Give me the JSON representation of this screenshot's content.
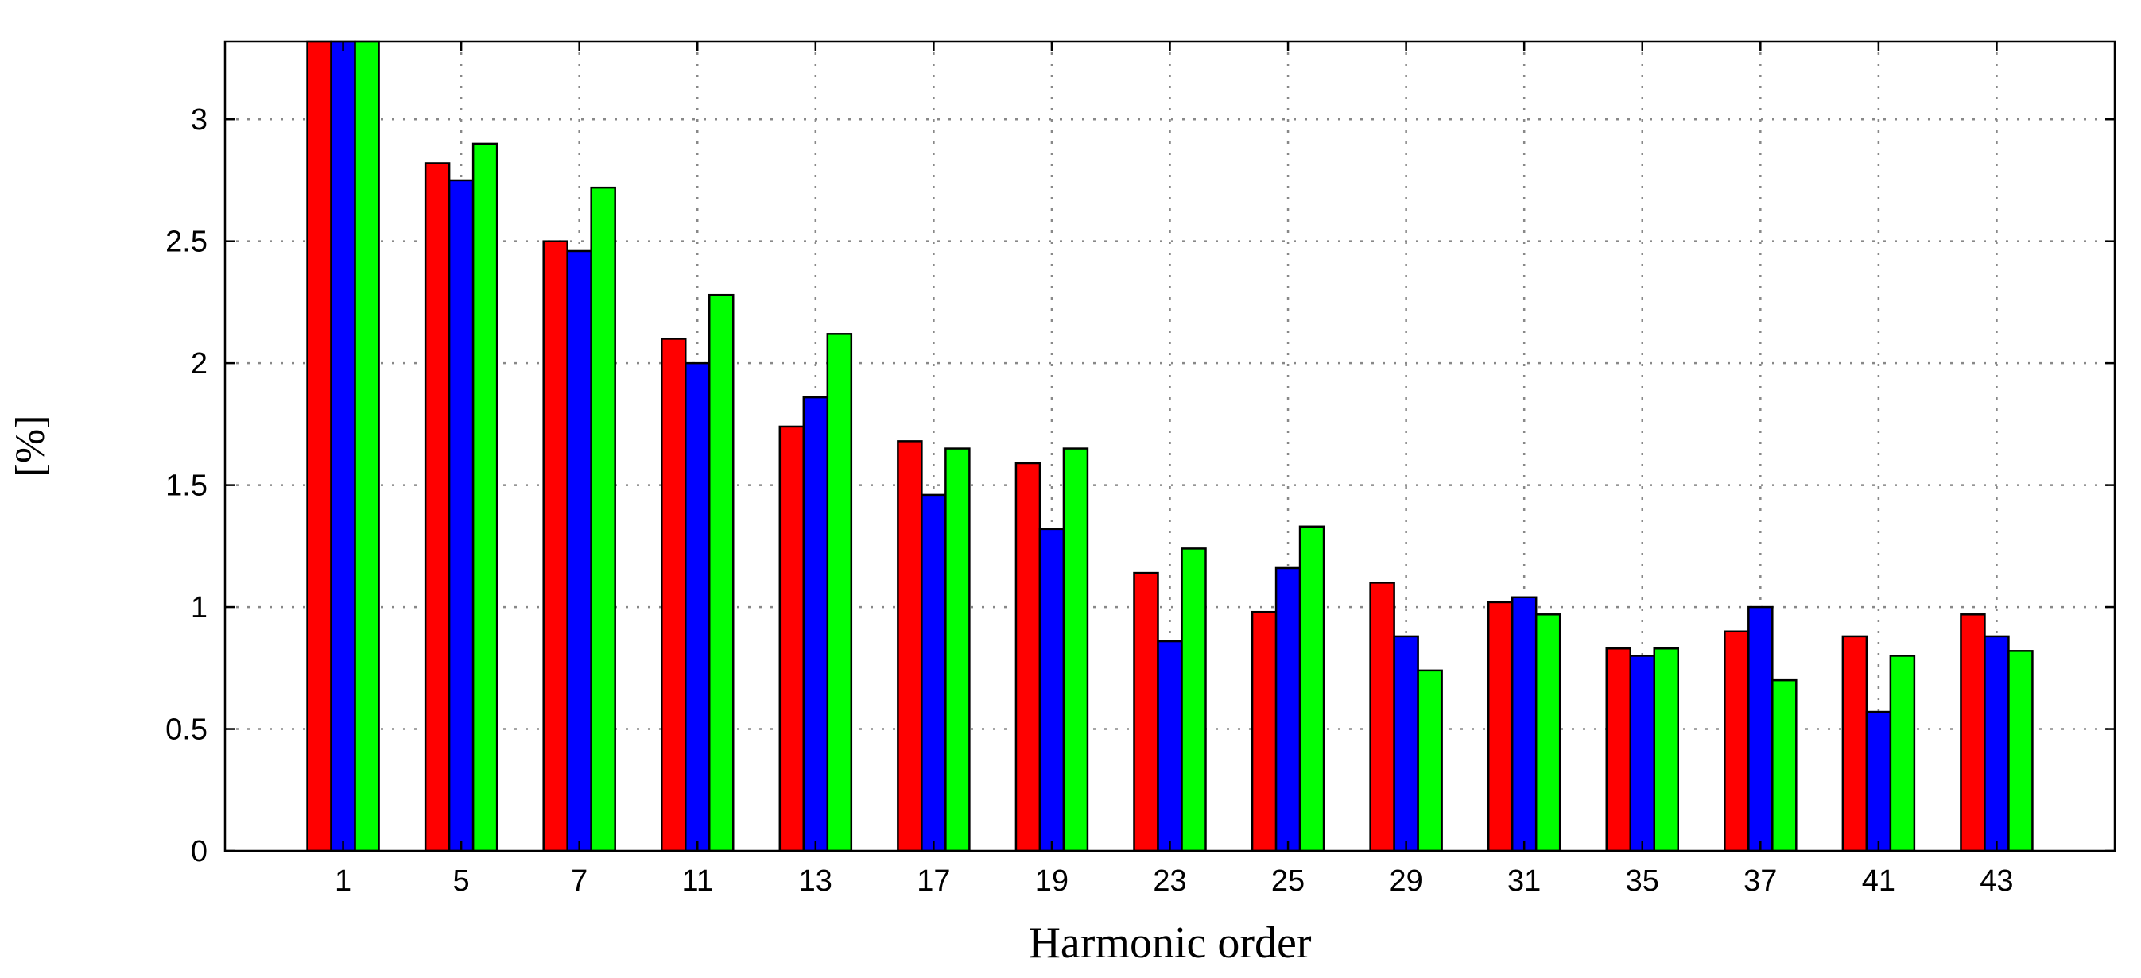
{
  "chart_data": {
    "type": "bar",
    "xlabel": "Harmonic order",
    "ylabel": "[%]",
    "ylim": [
      0,
      3.32
    ],
    "yticks": [
      0,
      0.5,
      1,
      1.5,
      2,
      2.5,
      3
    ],
    "ytick_labels": [
      "0",
      "0.5",
      "1",
      "1.5",
      "2",
      "2.5",
      "3"
    ],
    "grid": true,
    "categories": [
      "1",
      "5",
      "7",
      "11",
      "13",
      "17",
      "19",
      "23",
      "25",
      "29",
      "31",
      "35",
      "37",
      "41",
      "43"
    ],
    "series": [
      {
        "color": "#ff0000",
        "values": [
          3.32,
          2.82,
          2.5,
          2.1,
          1.74,
          1.68,
          1.59,
          1.14,
          0.98,
          1.1,
          1.02,
          0.83,
          0.9,
          0.88,
          0.97
        ]
      },
      {
        "color": "#0000ff",
        "values": [
          3.32,
          2.75,
          2.46,
          2.0,
          1.86,
          1.46,
          1.32,
          0.86,
          1.16,
          0.88,
          1.04,
          0.8,
          1.0,
          0.57,
          0.88
        ]
      },
      {
        "color": "#00ff00",
        "values": [
          3.32,
          2.9,
          2.72,
          2.28,
          2.12,
          1.65,
          1.65,
          1.24,
          1.33,
          0.74,
          0.97,
          0.83,
          0.7,
          0.8,
          0.82
        ]
      }
    ]
  }
}
